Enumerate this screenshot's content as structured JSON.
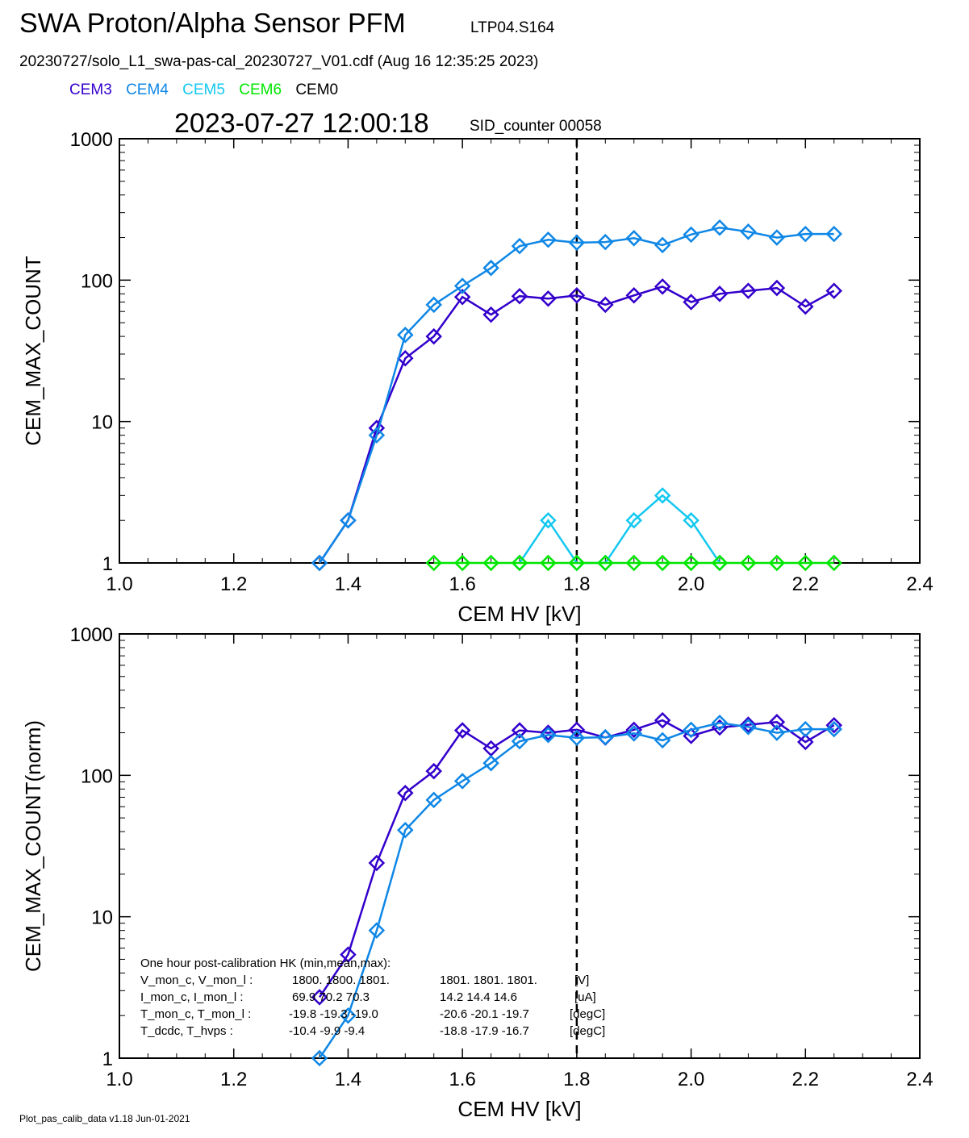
{
  "header": {
    "title": "SWA Proton/Alpha Sensor PFM",
    "tag": "LTP04.S164",
    "file_line": "20230727/solo_L1_swa-pas-cal_20230727_V01.cdf  (Aug 16 12:35:25 2023)",
    "timestamp": "2023-07-27 12:00:18",
    "sid": "SID_counter 00058"
  },
  "legend": [
    {
      "label": "CEM3",
      "color": "#3300cc"
    },
    {
      "label": "CEM4",
      "color": "#0f87e6"
    },
    {
      "label": "CEM5",
      "color": "#14c8f0"
    },
    {
      "label": "CEM6",
      "color": "#00e600"
    },
    {
      "label": "CEM0",
      "color": "#000000"
    }
  ],
  "footer": "Plot_pas_calib_data v1.18 Jun-01-2021",
  "hk": {
    "title": "One hour post-calibration HK (min,mean,max):",
    "rows": [
      {
        "label": "V_mon_c, V_mon_l :",
        "c": "1800.  1800.  1801.",
        "l": "1801.  1801.  1801.",
        "unit": "[V]"
      },
      {
        "label": "I_mon_c,  I_mon_l :",
        "c": "69.9   70.2   70.3",
        "l": "14.2   14.4   14.6",
        "unit": "[uA]"
      },
      {
        "label": "T_mon_c, T_mon_l :",
        "c": "-19.8  -19.3  -19.0",
        "l": "-20.6  -20.1  -19.7",
        "unit": "[degC]"
      },
      {
        "label": "T_dcdc,    T_hvps :",
        "c": "-10.4   -9.9   -9.4",
        "l": "-18.8  -17.9  -16.7",
        "unit": "[degC]"
      }
    ]
  },
  "chart_data": [
    {
      "type": "line",
      "title": "",
      "xlabel": "CEM HV [kV]",
      "ylabel": "CEM_MAX_COUNT",
      "xlim": [
        1.0,
        2.4
      ],
      "ylim": [
        1,
        1000
      ],
      "yscale": "log",
      "xticks": [
        "1.0",
        "1.2",
        "1.4",
        "1.6",
        "1.8",
        "2.0",
        "2.2",
        "2.4"
      ],
      "yticks": [
        "1",
        "10",
        "100",
        "1000"
      ],
      "vline": 1.8,
      "series": [
        {
          "name": "CEM3",
          "color": "#3300cc",
          "x": [
            1.35,
            1.4,
            1.45,
            1.5,
            1.55,
            1.6,
            1.65,
            1.7,
            1.75,
            1.8,
            1.85,
            1.9,
            1.95,
            2.0,
            2.05,
            2.1,
            2.15,
            2.2,
            2.25
          ],
          "values": [
            1,
            2,
            9,
            28,
            40,
            76,
            57,
            77,
            74,
            78,
            67,
            78,
            90,
            70,
            80,
            84,
            88,
            65,
            84
          ]
        },
        {
          "name": "CEM4",
          "color": "#0f87e6",
          "x": [
            1.35,
            1.4,
            1.45,
            1.5,
            1.55,
            1.6,
            1.65,
            1.7,
            1.75,
            1.8,
            1.85,
            1.9,
            1.95,
            2.0,
            2.05,
            2.1,
            2.15,
            2.2,
            2.25
          ],
          "values": [
            1,
            2,
            8,
            41,
            67,
            91,
            122,
            174,
            193,
            184,
            186,
            198,
            177,
            210,
            235,
            220,
            200,
            212,
            212
          ]
        },
        {
          "name": "CEM5",
          "color": "#14c8f0",
          "x": [
            1.7,
            1.75,
            1.8,
            1.85,
            1.9,
            1.95,
            2.0,
            2.05
          ],
          "values": [
            1,
            2,
            1,
            1,
            2,
            3,
            2,
            1
          ]
        },
        {
          "name": "CEM6",
          "color": "#00e600",
          "x": [
            1.55,
            1.6,
            1.65,
            1.7,
            1.75,
            1.8,
            1.85,
            1.9,
            1.95,
            2.0,
            2.05,
            2.1,
            2.15,
            2.2,
            2.25
          ],
          "values": [
            1,
            1,
            1,
            1,
            1,
            1,
            1,
            1,
            1,
            1,
            1,
            1,
            1,
            1,
            1
          ]
        }
      ]
    },
    {
      "type": "line",
      "title": "",
      "xlabel": "CEM HV [kV]",
      "ylabel": "CEM_MAX_COUNT(norm)",
      "xlim": [
        1.0,
        2.4
      ],
      "ylim": [
        1,
        1000
      ],
      "yscale": "log",
      "xticks": [
        "1.0",
        "1.2",
        "1.4",
        "1.6",
        "1.8",
        "2.0",
        "2.2",
        "2.4"
      ],
      "yticks": [
        "1",
        "10",
        "100",
        "1000"
      ],
      "vline": 1.8,
      "series": [
        {
          "name": "CEM3",
          "color": "#3300cc",
          "x": [
            1.35,
            1.4,
            1.45,
            1.5,
            1.55,
            1.6,
            1.65,
            1.7,
            1.75,
            1.8,
            1.85,
            1.9,
            1.95,
            2.0,
            2.05,
            2.1,
            2.15,
            2.2,
            2.25
          ],
          "values": [
            2.7,
            5.4,
            24,
            75,
            107,
            208,
            155,
            208,
            200,
            210,
            185,
            210,
            245,
            190,
            218,
            228,
            238,
            172,
            226
          ]
        },
        {
          "name": "CEM4",
          "color": "#0f87e6",
          "x": [
            1.35,
            1.4,
            1.45,
            1.5,
            1.55,
            1.6,
            1.65,
            1.7,
            1.75,
            1.8,
            1.85,
            1.9,
            1.95,
            2.0,
            2.05,
            2.1,
            2.15,
            2.2,
            2.25
          ],
          "values": [
            1,
            2,
            8,
            41,
            67,
            91,
            122,
            174,
            193,
            184,
            186,
            198,
            177,
            210,
            235,
            220,
            200,
            212,
            212
          ]
        }
      ]
    }
  ]
}
